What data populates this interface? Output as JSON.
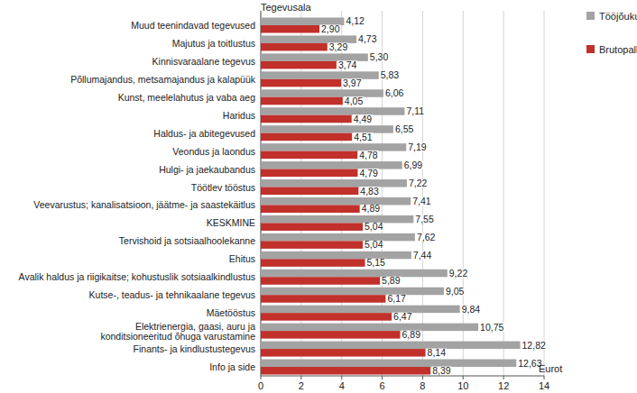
{
  "chart_data": {
    "type": "bar",
    "orientation": "horizontal",
    "y_label": "Tegevusala",
    "x_label": "Eurot",
    "categories": [
      "Muud teenindavad tegevused",
      "Majutus ja toitlustus",
      "Kinnisvaraalane tegevus",
      "Põllumajandus, metsamajandus ja kalapüük",
      "Kunst, meelelahutus ja vaba aeg",
      "Haridus",
      "Haldus- ja abitegevused",
      "Veondus ja laondus",
      "Hulgi- ja jaekaubandus",
      "Töötlev tööstus",
      "Veevarustus; kanalisatsioon, jäätme- ja saastekäitlus",
      "KESKMINE",
      "Tervishoid ja sotsiaalhoolekanne",
      "Ehitus",
      "Avalik haldus ja riigikaitse; kohustuslik sotsiaalkindlustus",
      "Kutse-, teadus- ja tehnikaalane tegevus",
      "Mäetööstus",
      "Elektrienergia, gaasi, auru ja\nkonditsioneeritud õhuga varustamine",
      "Finants- ja kindlustustegevus",
      "Info ja side"
    ],
    "series": [
      {
        "name": "Tööjõukulu",
        "color": "#a3a3a3",
        "values": [
          4.12,
          4.73,
          5.3,
          5.83,
          6.06,
          7.11,
          6.55,
          7.19,
          6.99,
          7.22,
          7.41,
          7.55,
          7.62,
          7.44,
          9.22,
          9.05,
          9.84,
          10.75,
          12.82,
          12.63
        ],
        "value_labels": [
          "4,12",
          "4,73",
          "5,30",
          "5,83",
          "6,06",
          "7,11",
          "6,55",
          "7,19",
          "6,99",
          "7,22",
          "7,41",
          "7,55",
          "7,62",
          "7,44",
          "9,22",
          "9,05",
          "9,84",
          "10,75",
          "12,82",
          "12,63"
        ]
      },
      {
        "name": "Brutopalk",
        "color": "#c1302a",
        "values": [
          2.9,
          3.29,
          3.74,
          3.97,
          4.05,
          4.49,
          4.51,
          4.78,
          4.79,
          4.83,
          4.89,
          5.04,
          5.04,
          5.15,
          5.89,
          6.17,
          6.47,
          6.89,
          8.14,
          8.39
        ],
        "value_labels": [
          "2,90",
          "3,29",
          "3,74",
          "3,97",
          "4,05",
          "4,49",
          "4,51",
          "4,78",
          "4,79",
          "4,83",
          "4,89",
          "5,04",
          "5,04",
          "5,15",
          "5,89",
          "6,17",
          "6,47",
          "6,89",
          "8,14",
          "8,39"
        ]
      }
    ],
    "xlim": [
      0,
      14
    ],
    "xticks": [
      0,
      2,
      4,
      6,
      8,
      10,
      12,
      14
    ],
    "grid": true,
    "legend": "right",
    "data_labels": true
  }
}
